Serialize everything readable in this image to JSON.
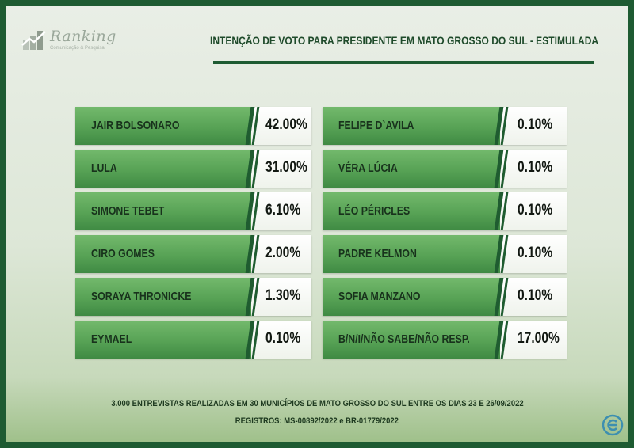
{
  "brand": {
    "name": "Ranking",
    "tagline": "Comunicação & Pesquisa",
    "colors": {
      "primary": "#1e5b32",
      "accent": "#57a255"
    }
  },
  "title": "INTENÇÃO DE VOTO PARA PRESIDENTE EM MATO GROSSO DO SUL - ESTIMULADA",
  "chart_data": {
    "type": "table",
    "title": "INTENÇÃO DE VOTO PARA PRESIDENTE EM MATO GROSSO DO SUL - ESTIMULADA",
    "columns": [
      [
        {
          "label": "JAIR BOLSONARO",
          "value": 42.0,
          "display": "42.00%"
        },
        {
          "label": "LULA",
          "value": 31.0,
          "display": "31.00%"
        },
        {
          "label": "SIMONE TEBET",
          "value": 6.1,
          "display": "6.10%"
        },
        {
          "label": "CIRO GOMES",
          "value": 2.0,
          "display": "2.00%"
        },
        {
          "label": "SORAYA THRONICKE",
          "value": 1.3,
          "display": "1.30%"
        },
        {
          "label": "EYMAEL",
          "value": 0.1,
          "display": "0.10%"
        }
      ],
      [
        {
          "label": "FELIPE D`AVILA",
          "value": 0.1,
          "display": "0.10%"
        },
        {
          "label": "VÉRA LÚCIA",
          "value": 0.1,
          "display": "0.10%"
        },
        {
          "label": "LÉO PÉRICLES",
          "value": 0.1,
          "display": "0.10%"
        },
        {
          "label": "PADRE KELMON",
          "value": 0.1,
          "display": "0.10%"
        },
        {
          "label": "SOFIA MANZANO",
          "value": 0.1,
          "display": "0.10%"
        },
        {
          "label": "B/N/I/NÃO SABE/NÃO RESP.",
          "value": 17.0,
          "display": "17.00%"
        }
      ]
    ]
  },
  "footer": {
    "line1": "3.000 ENTREVISTAS REALIZADAS EM 30 MUNICÍPIOS DE MATO GROSSO DO SUL ENTRE OS DIAS 23 E 26/09/2022",
    "line2": "REGISTROS: MS-00892/2022 e BR-01779/2022"
  },
  "icons": {
    "logo": "ranking-logo-icon",
    "corner": "e-circle-logo-icon"
  }
}
